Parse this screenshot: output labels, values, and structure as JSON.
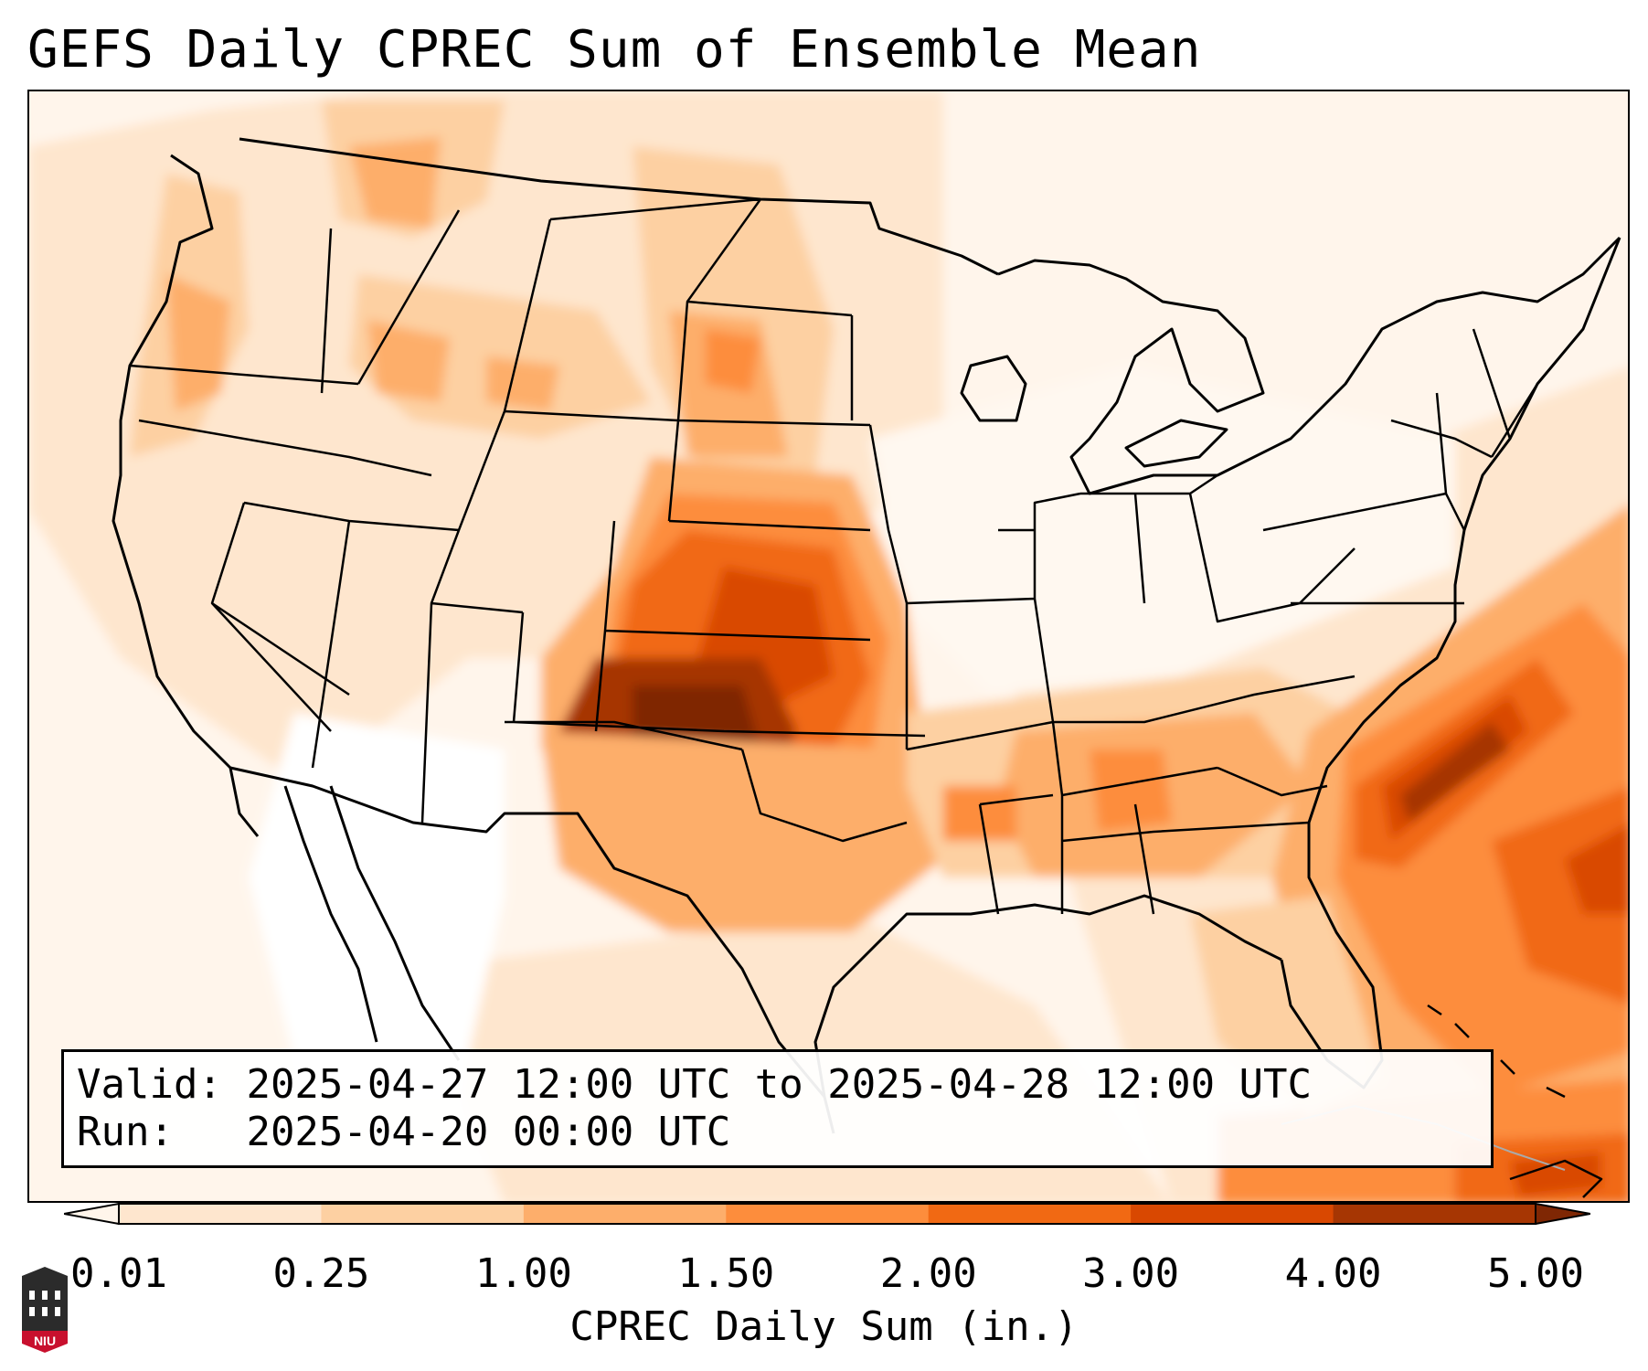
{
  "title": "GEFS Daily CPREC Sum of Ensemble Mean",
  "info": {
    "valid_label": "Valid:",
    "valid_value": "2025-04-27 12:00 UTC to 2025-04-28 12:00 UTC",
    "run_label": "Run:",
    "run_value": "2025-04-20 00:00 UTC"
  },
  "colorbar": {
    "label": "CPREC Daily Sum (in.)",
    "ticks": [
      "0.01",
      "0.25",
      "1.00",
      "1.50",
      "2.00",
      "3.00",
      "4.00",
      "5.00"
    ],
    "colors": [
      "#fee6ce",
      "#fdd0a2",
      "#fdae6b",
      "#fd8d3c",
      "#f16913",
      "#d94801",
      "#a63603"
    ],
    "under_color": "#fff5eb",
    "over_color": "#7f2704"
  },
  "logo": {
    "text": "NIU"
  },
  "map": {
    "region": "CONUS",
    "max_region": "Oklahoma / North Texas",
    "secondary_max": "Atlantic off the Carolinas"
  }
}
